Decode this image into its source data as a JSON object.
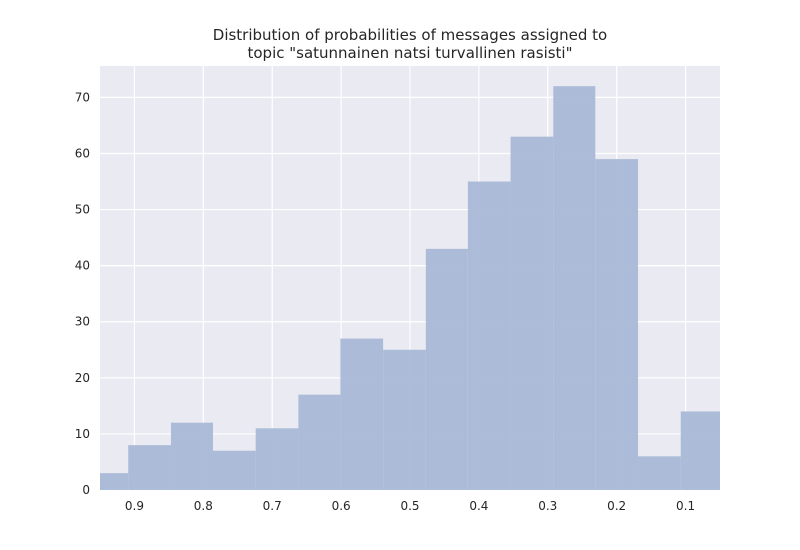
{
  "chart_data": {
    "type": "bar",
    "title_lines": [
      "Distribution of probabilities of messages assigned to",
      "topic \"satunnainen natsi turvallinen rasisti\""
    ],
    "xlabel": "",
    "ylabel": "",
    "x_reversed": true,
    "xlim": [
      0.95,
      0.05
    ],
    "ylim": [
      0,
      75.6
    ],
    "x_ticks": [
      0.9,
      0.8,
      0.7,
      0.6,
      0.5,
      0.4,
      0.3,
      0.2,
      0.1
    ],
    "x_tick_labels": [
      "0.9",
      "0.8",
      "0.7",
      "0.6",
      "0.5",
      "0.4",
      "0.3",
      "0.2",
      "0.1"
    ],
    "y_ticks": [
      0,
      10,
      20,
      30,
      40,
      50,
      60,
      70
    ],
    "y_tick_labels": [
      "0",
      "10",
      "20",
      "30",
      "40",
      "50",
      "60",
      "70"
    ],
    "grid": true,
    "bin_edges": [
      0.95,
      0.909,
      0.847,
      0.786,
      0.724,
      0.662,
      0.601,
      0.539,
      0.477,
      0.416,
      0.354,
      0.292,
      0.231,
      0.169,
      0.107,
      0.05
    ],
    "values": [
      3,
      8,
      12,
      7,
      11,
      17,
      27,
      25,
      43,
      55,
      63,
      72,
      59,
      6,
      14
    ],
    "colors": {
      "bar": "#a9b8d6",
      "plot_background": "#eaeaf2",
      "grid": "#ffffff",
      "text": "#262626"
    }
  }
}
